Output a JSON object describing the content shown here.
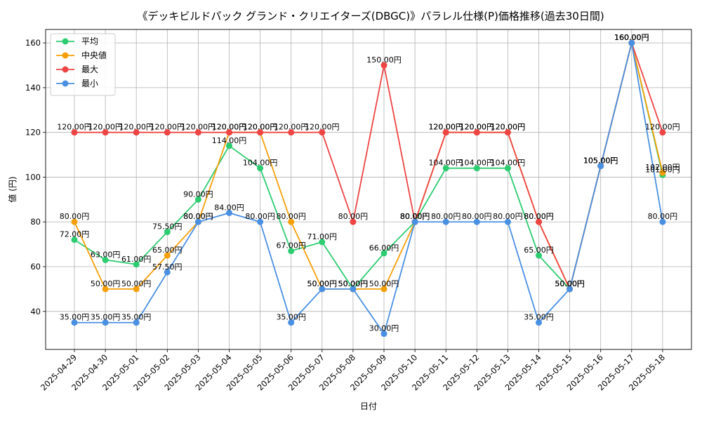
{
  "chart_data": {
    "type": "line",
    "title": "《デッキビルドパック グランド・クリエイターズ(DBGC)》パラレル仕様(P)価格推移(過去30日間)",
    "xlabel": "日付",
    "ylabel": "値 (円)",
    "ylim": [
      23,
      166
    ],
    "yticks": [
      40,
      60,
      80,
      100,
      120,
      140,
      160
    ],
    "grid": true,
    "legend_position": "top-left",
    "label_suffix": "円",
    "categories": [
      "2025-04-29",
      "2025-04-30",
      "2025-05-01",
      "2025-05-02",
      "2025-05-03",
      "2025-05-04",
      "2025-05-05",
      "2025-05-06",
      "2025-05-07",
      "2025-05-08",
      "2025-05-09",
      "2025-05-10",
      "2025-05-11",
      "2025-05-12",
      "2025-05-13",
      "2025-05-14",
      "2025-05-15",
      "2025-05-16",
      "2025-05-17",
      "2025-05-18"
    ],
    "series": [
      {
        "name": "平均",
        "color": "#2ecc71",
        "values": [
          72,
          63,
          61,
          75.5,
          90,
          114,
          104,
          67,
          71,
          50,
          66,
          80,
          104,
          104,
          104,
          65,
          50,
          105,
          160,
          101
        ]
      },
      {
        "name": "中央値",
        "color": "#f5a00a",
        "values": [
          80,
          50,
          50,
          65,
          80,
          120,
          120,
          80,
          50,
          50,
          50,
          80,
          120,
          120,
          120,
          80,
          50,
          105,
          160,
          102
        ]
      },
      {
        "name": "最大",
        "color": "#ef4444",
        "values": [
          120,
          120,
          120,
          120,
          120,
          120,
          120,
          120,
          120,
          80,
          150,
          80,
          120,
          120,
          120,
          80,
          50,
          105,
          160,
          120
        ]
      },
      {
        "name": "最小",
        "color": "#4a90e2",
        "values": [
          35,
          35,
          35,
          57.5,
          80,
          84,
          80,
          35,
          50,
          50,
          30,
          80,
          80,
          80,
          80,
          35,
          50,
          105,
          160,
          80
        ]
      }
    ]
  }
}
